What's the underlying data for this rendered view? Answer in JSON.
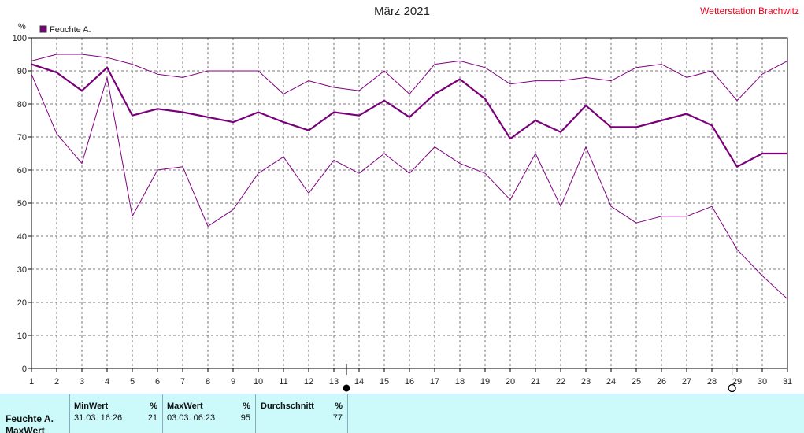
{
  "header": {
    "title": "März 2021",
    "station": "Wetterstation Brachwitz"
  },
  "chart_data": {
    "type": "line",
    "x": [
      1,
      2,
      3,
      4,
      5,
      6,
      7,
      8,
      9,
      10,
      11,
      12,
      13,
      14,
      15,
      16,
      17,
      18,
      19,
      20,
      21,
      22,
      23,
      24,
      25,
      26,
      27,
      28,
      29,
      30,
      31
    ],
    "ylim": [
      0,
      100
    ],
    "yticks": [
      0,
      10,
      20,
      30,
      40,
      50,
      60,
      70,
      80,
      90,
      100
    ],
    "ylabel": "%",
    "grid": true,
    "legend": {
      "placement": "top-left",
      "label": "Feuchte A.",
      "color": "#7b007b"
    },
    "series": [
      {
        "role": "max",
        "color": "#800080",
        "values": [
          93,
          95,
          95,
          94,
          92,
          89,
          88,
          90,
          90,
          90,
          83,
          87,
          85,
          84,
          90,
          83,
          92,
          93,
          91,
          86,
          87,
          87,
          88,
          87,
          91,
          92,
          88,
          90,
          81,
          89,
          93
        ]
      },
      {
        "role": "avg",
        "color": "#7a007a",
        "values": [
          92,
          89.5,
          84,
          91,
          76.5,
          78.5,
          77.5,
          76,
          74.5,
          77.5,
          74.5,
          72,
          77.5,
          76.5,
          81,
          76,
          83,
          87.5,
          81.5,
          69.5,
          75,
          71.5,
          79.5,
          73,
          73,
          75,
          77,
          73.5,
          61,
          65,
          65
        ]
      },
      {
        "role": "min",
        "color": "#800080",
        "values": [
          89,
          71,
          62,
          88,
          46,
          60,
          61,
          43,
          48,
          59,
          64,
          53,
          63,
          59,
          65,
          59,
          67,
          62,
          59,
          51,
          65,
          49,
          67,
          49,
          44,
          46,
          46,
          49,
          36,
          28,
          21
        ]
      }
    ],
    "markers": [
      {
        "symbol": "full-moon",
        "x": 13.5,
        "color": "#000000"
      },
      {
        "symbol": "new-moon",
        "x": 28.8,
        "color": "#000000"
      }
    ]
  },
  "summary": {
    "row_label": "Feuchte A.",
    "row_label_2": "MaxWert",
    "min": {
      "header": "MinWert",
      "unit": "%",
      "time": "31.03.  16:26",
      "value": "21"
    },
    "max": {
      "header": "MaxWert",
      "unit": "%",
      "time": "03.03.  06:23",
      "value": "95"
    },
    "avg": {
      "header": "Durchschnitt",
      "unit": "%",
      "value": "77"
    }
  }
}
